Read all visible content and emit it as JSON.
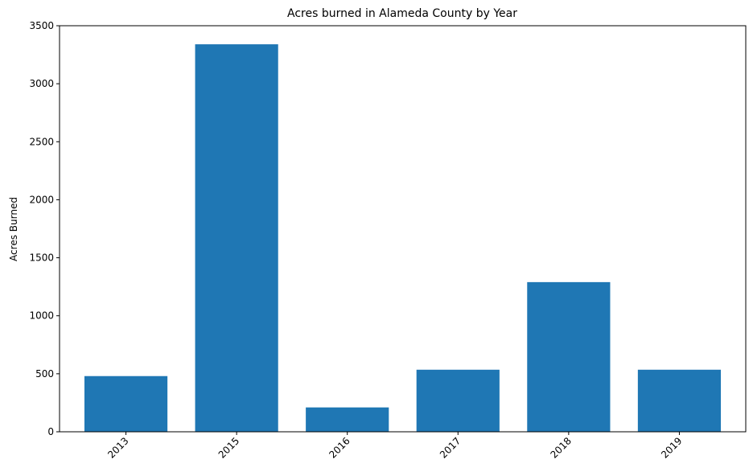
{
  "chart_data": {
    "type": "bar",
    "title": "Acres burned in Alameda County by Year",
    "xlabel": "",
    "ylabel": "Acres Burned",
    "categories": [
      "2013",
      "2015",
      "2016",
      "2017",
      "2018",
      "2019"
    ],
    "values": [
      480,
      3340,
      210,
      535,
      1290,
      535
    ],
    "ylim": [
      0,
      3500
    ],
    "yticks": [
      0,
      500,
      1000,
      1500,
      2000,
      2500,
      3000,
      3500
    ],
    "bar_color": "#1f77b4",
    "grid": false,
    "legend": "none"
  }
}
